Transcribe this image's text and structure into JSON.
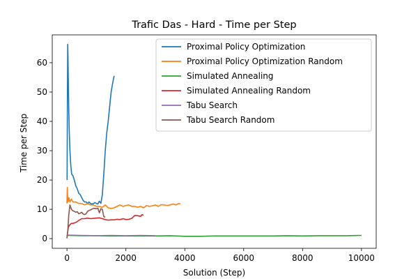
{
  "chart_data": {
    "type": "line",
    "title": "Trafic Das - Hard - Time per Step",
    "xlabel": "Solution (Step)",
    "ylabel": "Time per Step",
    "xlim": [
      -500,
      10500
    ],
    "ylim": [
      -3.3,
      69.5
    ],
    "xticks": [
      0,
      2000,
      4000,
      6000,
      8000,
      10000
    ],
    "yticks": [
      0,
      10,
      20,
      30,
      40,
      50,
      60
    ],
    "grid": false,
    "legend": "top-right",
    "series": [
      {
        "name": "Proximal Policy Optimization",
        "color": "#1f77b4",
        "x": [
          5,
          15,
          25,
          35,
          45,
          60,
          80,
          100,
          130,
          160,
          200,
          250,
          300,
          350,
          400,
          450,
          500,
          550,
          600,
          650,
          700,
          750,
          800,
          850,
          900,
          950,
          1000,
          1050,
          1100,
          1150,
          1200,
          1250,
          1300,
          1350,
          1400,
          1450,
          1500,
          1550,
          1600
        ],
        "y": [
          20,
          50,
          66.3,
          62,
          55,
          44,
          36,
          30,
          25,
          22,
          21.5,
          20,
          18,
          17,
          15.5,
          15,
          14,
          13,
          12.5,
          12.5,
          12,
          12.5,
          12,
          11.8,
          12,
          12.3,
          12,
          11.8,
          12.8,
          12,
          15,
          22,
          30,
          36,
          40,
          45,
          50,
          53,
          55.5
        ]
      },
      {
        "name": "Proximal Policy Optimization Random",
        "color": "#ff7f0e",
        "x": [
          0,
          10,
          25,
          40,
          60,
          100,
          150,
          200,
          300,
          400,
          500,
          600,
          700,
          800,
          900,
          1000,
          1100,
          1200,
          1300,
          1400,
          1500,
          1600,
          1700,
          1800,
          1900,
          2000,
          2100,
          2200,
          2300,
          2400,
          2500,
          2600,
          2700,
          2800,
          2900,
          3000,
          3100,
          3200,
          3300,
          3400,
          3500,
          3600,
          3700,
          3800,
          3850
        ],
        "y": [
          12,
          17.5,
          13,
          12.5,
          14,
          12.5,
          13.5,
          12.5,
          12.5,
          12,
          12,
          11.5,
          12,
          11.5,
          11.5,
          11,
          11,
          10.7,
          11.5,
          10.5,
          10.3,
          10.5,
          11,
          11.5,
          11,
          11.3,
          11.5,
          11,
          11,
          10.7,
          11,
          10.5,
          11.3,
          11,
          11.2,
          11.5,
          11,
          11.6,
          11.5,
          11.3,
          11.5,
          11.8,
          11.5,
          12,
          11.8
        ]
      },
      {
        "name": "Simulated Annealing",
        "color": "#2ca02c",
        "x": [
          0,
          500,
          1000,
          1500,
          2000,
          2500,
          3000,
          3500,
          4000,
          4500,
          5000,
          5500,
          6000,
          6500,
          7000,
          7500,
          8000,
          8500,
          9000,
          9500,
          10000
        ],
        "y": [
          1.1,
          1.0,
          1.0,
          0.9,
          0.9,
          0.9,
          0.9,
          1.0,
          0.8,
          0.8,
          0.9,
          0.9,
          0.9,
          0.9,
          0.9,
          1.0,
          0.9,
          1.0,
          1.0,
          1.0,
          1.1
        ]
      },
      {
        "name": "Simulated Annealing Random",
        "color": "#d62728",
        "x": [
          0,
          20,
          40,
          60,
          100,
          150,
          200,
          300,
          400,
          500,
          600,
          700,
          800,
          900,
          1000,
          1100,
          1200,
          1300,
          1400,
          1500,
          1600,
          1700,
          1800,
          1900,
          2000,
          2100,
          2200,
          2300,
          2400,
          2500,
          2550,
          2600
        ],
        "y": [
          0.1,
          2,
          3.5,
          4.2,
          4.8,
          5.2,
          5.2,
          5.5,
          6.2,
          6.8,
          6.8,
          7,
          6.8,
          6.9,
          7,
          7.1,
          6.8,
          6.5,
          6.3,
          6.4,
          6.4,
          6.6,
          6.5,
          6.8,
          6.5,
          6.6,
          6.9,
          7.9,
          7.8,
          7.6,
          8.2,
          8
        ]
      },
      {
        "name": "Tabu Search",
        "color": "#9467bd",
        "x": [
          0,
          500,
          1000,
          1500,
          2000,
          2500,
          3000
        ],
        "y": [
          1.2,
          1.1,
          1.0,
          1.1,
          1.0,
          1.1,
          1.0
        ]
      },
      {
        "name": "Tabu Search Random",
        "color": "#8c564b",
        "x": [
          0,
          30,
          60,
          100,
          150,
          200,
          250,
          300,
          350,
          400,
          450,
          500,
          550,
          600,
          650,
          700,
          750,
          800,
          850,
          900,
          950,
          1000,
          1050,
          1100,
          1150,
          1200,
          1250,
          1300
        ],
        "y": [
          0.2,
          3,
          8,
          11.5,
          10,
          9.5,
          9.3,
          9,
          9.2,
          8.5,
          8.7,
          9,
          8.4,
          8.2,
          8.5,
          9.3,
          9.6,
          9.8,
          10.1,
          10.3,
          10.3,
          10.2,
          10.4,
          8.8,
          10.2,
          10,
          7.5,
          7.3
        ]
      }
    ]
  }
}
